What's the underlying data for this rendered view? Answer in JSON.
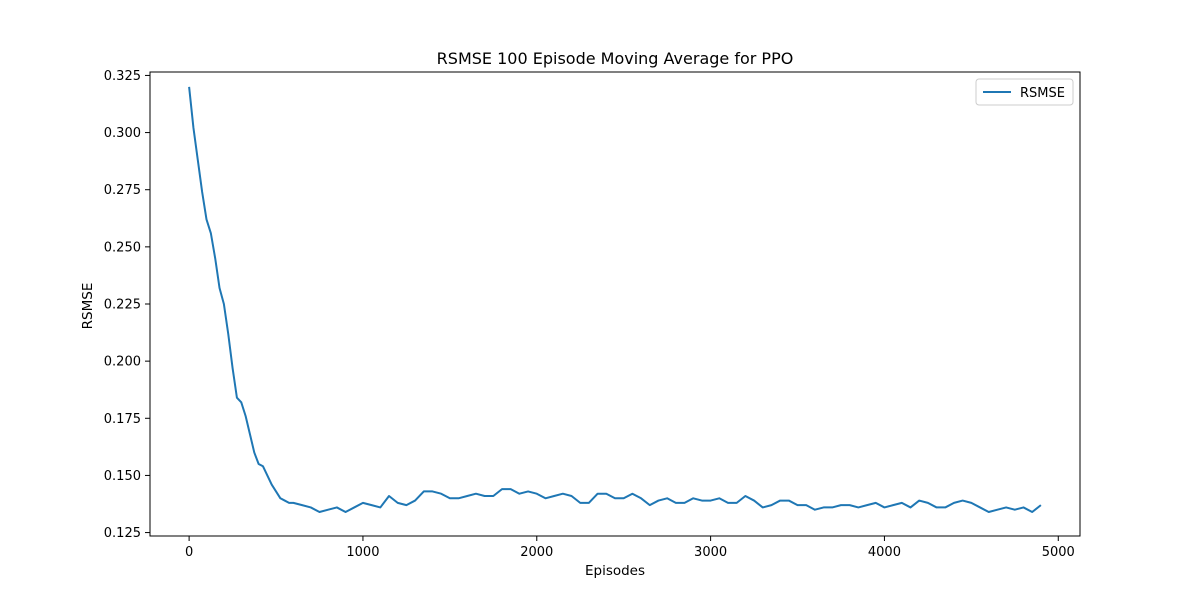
{
  "chart_data": {
    "type": "line",
    "title": "RSMSE 100 Episode Moving Average for PPO",
    "xlabel": "Episodes",
    "ylabel": "RSMSE",
    "xlim": [
      -225,
      5125
    ],
    "ylim": [
      0.1235,
      0.3265
    ],
    "xticks": [
      0,
      1000,
      2000,
      3000,
      4000,
      5000
    ],
    "yticks": [
      0.125,
      0.15,
      0.175,
      0.2,
      0.225,
      0.25,
      0.275,
      0.3,
      0.325
    ],
    "ytick_labels": [
      "0.125",
      "0.150",
      "0.175",
      "0.200",
      "0.225",
      "0.250",
      "0.275",
      "0.300",
      "0.325"
    ],
    "grid": false,
    "legend_position": "top-right",
    "series": [
      {
        "name": "RSMSE",
        "color": "#1f77b4",
        "x": [
          0,
          25,
          50,
          75,
          100,
          125,
          150,
          175,
          200,
          225,
          250,
          275,
          300,
          325,
          350,
          375,
          400,
          425,
          450,
          475,
          500,
          525,
          550,
          575,
          600,
          650,
          700,
          750,
          800,
          850,
          900,
          950,
          1000,
          1050,
          1100,
          1150,
          1200,
          1250,
          1300,
          1350,
          1400,
          1450,
          1500,
          1550,
          1600,
          1650,
          1700,
          1750,
          1800,
          1850,
          1900,
          1950,
          2000,
          2050,
          2100,
          2150,
          2200,
          2250,
          2300,
          2350,
          2400,
          2450,
          2500,
          2550,
          2600,
          2650,
          2700,
          2750,
          2800,
          2850,
          2900,
          2950,
          3000,
          3050,
          3100,
          3150,
          3200,
          3250,
          3300,
          3350,
          3400,
          3450,
          3500,
          3550,
          3600,
          3650,
          3700,
          3750,
          3800,
          3850,
          3900,
          3950,
          4000,
          4050,
          4100,
          4150,
          4200,
          4250,
          4300,
          4350,
          4400,
          4450,
          4500,
          4550,
          4600,
          4650,
          4700,
          4750,
          4800,
          4850,
          4900
        ],
        "values": [
          0.32,
          0.302,
          0.288,
          0.274,
          0.262,
          0.256,
          0.245,
          0.232,
          0.225,
          0.212,
          0.197,
          0.184,
          0.182,
          0.176,
          0.168,
          0.16,
          0.155,
          0.154,
          0.15,
          0.146,
          0.143,
          0.14,
          0.139,
          0.138,
          0.138,
          0.137,
          0.136,
          0.134,
          0.135,
          0.136,
          0.134,
          0.136,
          0.138,
          0.137,
          0.136,
          0.141,
          0.138,
          0.137,
          0.139,
          0.143,
          0.143,
          0.142,
          0.14,
          0.14,
          0.141,
          0.142,
          0.141,
          0.141,
          0.144,
          0.144,
          0.142,
          0.143,
          0.142,
          0.14,
          0.141,
          0.142,
          0.141,
          0.138,
          0.138,
          0.142,
          0.142,
          0.14,
          0.14,
          0.142,
          0.14,
          0.137,
          0.139,
          0.14,
          0.138,
          0.138,
          0.14,
          0.139,
          0.139,
          0.14,
          0.138,
          0.138,
          0.141,
          0.139,
          0.136,
          0.137,
          0.139,
          0.139,
          0.137,
          0.137,
          0.135,
          0.136,
          0.136,
          0.137,
          0.137,
          0.136,
          0.137,
          0.138,
          0.136,
          0.137,
          0.138,
          0.136,
          0.139,
          0.138,
          0.136,
          0.136,
          0.138,
          0.139,
          0.138,
          0.136,
          0.134,
          0.135,
          0.136,
          0.135,
          0.136,
          0.134,
          0.137
        ]
      }
    ]
  }
}
